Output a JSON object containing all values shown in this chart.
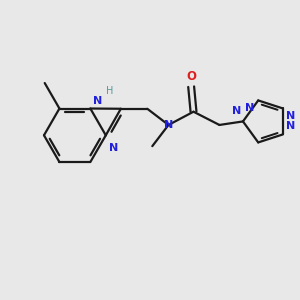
{
  "bg_color": "#e8e8e8",
  "bond_color": "#1a1a1a",
  "n_color": "#2020dd",
  "o_color": "#dd2020",
  "h_color": "#559999",
  "lw": 1.6,
  "xlim": [
    0,
    10
  ],
  "ylim": [
    0,
    10
  ]
}
